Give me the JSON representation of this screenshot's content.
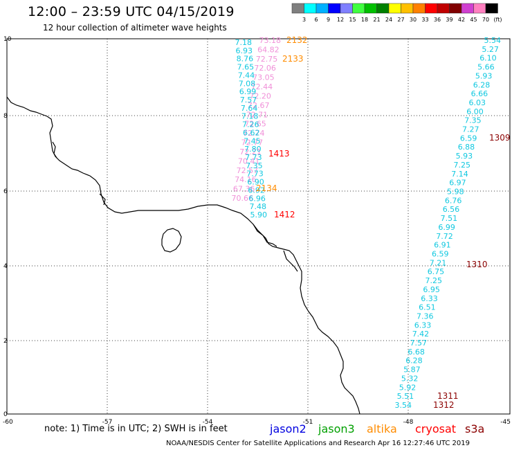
{
  "header": {
    "title": "12:00 – 23:59 UTC 04/15/2019",
    "subtitle": "12 hour collection of altimeter wave heights"
  },
  "color_scale": {
    "unit": "(ft)",
    "colors": [
      "#7f7f7f",
      "#00ffff",
      "#00b0ff",
      "#0000ff",
      "#8080ff",
      "#40ff40",
      "#00c000",
      "#008000",
      "#ffff00",
      "#ffc000",
      "#ff8000",
      "#ff0000",
      "#c00000",
      "#800000",
      "#d040d0",
      "#ff80c0",
      "#000000"
    ],
    "labels": [
      "3",
      "6",
      "9",
      "12",
      "15",
      "18",
      "21",
      "24",
      "27",
      "30",
      "33",
      "36",
      "39",
      "42",
      "45",
      "70"
    ]
  },
  "axes": {
    "lon_labels": [
      "-60",
      "-57",
      "-54",
      "-51",
      "-48",
      "-45"
    ],
    "lat_labels": [
      "10",
      "8",
      "6",
      "4",
      "2",
      "0"
    ]
  },
  "tracks": {
    "cyan_east": [
      "5.54",
      "5.27",
      "6.10",
      "5.66",
      "5.93",
      "6.28",
      "6.66",
      "6.03",
      "6.00",
      "7.35",
      "7.27",
      "6.59",
      "6.88",
      "5.93",
      "7.25",
      "7.14",
      "6.97",
      "5.98",
      "6.76",
      "6.56",
      "7.51",
      "6.99",
      "7.72",
      "6.91",
      "6.59",
      "7.21",
      "6.75",
      "7.25",
      "6.95",
      "6.33",
      "6.51",
      "7.36",
      "6.33",
      "7.42",
      "7.57",
      "6.68",
      "6.28",
      "5.87",
      "5.32",
      "5.92",
      "5.51",
      "3.54"
    ],
    "cyan_west": [
      "7.18",
      "6.93",
      "8.76",
      "7.65",
      "7.44",
      "7.08",
      "6.99",
      "7.57",
      "7.64",
      "7.18",
      "7.26",
      "6.62",
      "7.45",
      "7.80",
      "7.73",
      "7.35",
      "7.73",
      "6.90",
      "6.92",
      "6.96",
      "7.48",
      "5.90"
    ],
    "pink_west": [
      "73.18",
      "64.82",
      "72.75",
      "72.06",
      "73.05",
      "72.44",
      "72.20",
      "72.67",
      "72.71",
      "72.65",
      "72.74",
      "72.77",
      "72.21",
      "70.41",
      "72.57",
      "74.16",
      "67.36",
      "70.66"
    ]
  },
  "time_labels": [
    {
      "text": "2132",
      "color": "#ff8c00"
    },
    {
      "text": "2133",
      "color": "#ff8c00"
    },
    {
      "text": "1413",
      "color": "#ff0000"
    },
    {
      "text": "2134",
      "color": "#ff8c00"
    },
    {
      "text": "1412",
      "color": "#ff0000"
    },
    {
      "text": "1309",
      "color": "#8b0000"
    },
    {
      "text": "1310",
      "color": "#8b0000"
    },
    {
      "text": "1311",
      "color": "#8b0000"
    },
    {
      "text": "1312",
      "color": "#8b0000"
    }
  ],
  "footer": {
    "note": "note:  1) Time is in UTC;  2) SWH is in feet",
    "credit": "NOAA/NESDIS Center for Satellite Applications and Research    Apr 16 12:27:46 UTC 2019"
  },
  "legend": [
    {
      "name": "jason2",
      "color": "#0000e0"
    },
    {
      "name": "jason3",
      "color": "#00a000"
    },
    {
      "name": "altika",
      "color": "#ff8c00"
    },
    {
      "name": "cryosat",
      "color": "#ff0000"
    },
    {
      "name": "s3a",
      "color": "#8b0000"
    }
  ]
}
